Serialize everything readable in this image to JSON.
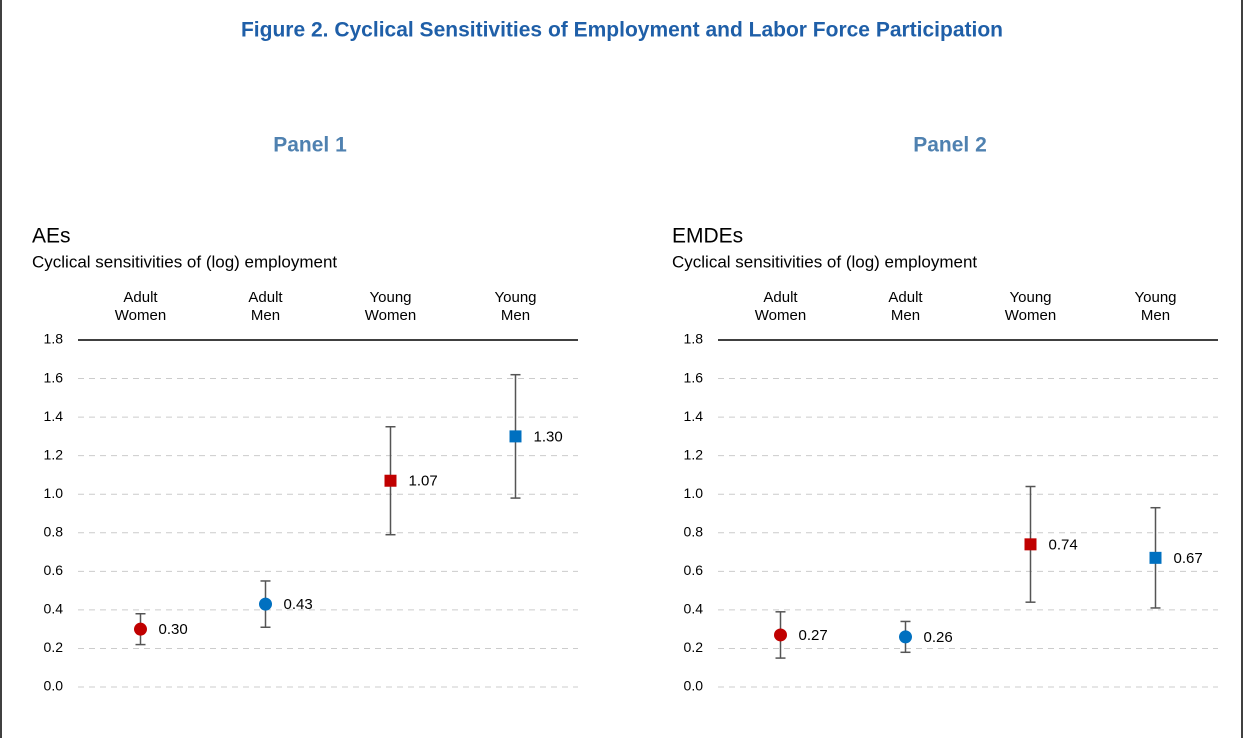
{
  "title": "Figure 2. Cyclical Sensitivities of Employment and Labor Force Participation",
  "chart_data": [
    {
      "type": "errorbar",
      "panel": "Panel 1",
      "title": "AEs",
      "subtitle": "Cyclical sensitivities of (log) employment",
      "categories": [
        [
          "Adult",
          "Women"
        ],
        [
          "Adult",
          "Men"
        ],
        [
          "Young",
          "Women"
        ],
        [
          "Young",
          "Men"
        ]
      ],
      "values": [
        0.3,
        0.43,
        1.07,
        1.3
      ],
      "value_labels": [
        "0.30",
        "0.43",
        "1.07",
        "1.30"
      ],
      "errors": [
        0.08,
        0.12,
        0.28,
        0.32
      ],
      "colors": [
        "#c00000",
        "#0070c0",
        "#c00000",
        "#0070c0"
      ],
      "markers": [
        "circle",
        "circle",
        "square",
        "square"
      ],
      "ylim": [
        0,
        1.8
      ],
      "yticks": [
        {
          "value": 0,
          "label": "0.0"
        },
        0.2,
        0.4,
        0.6,
        0.8,
        {
          "value": 1,
          "label": "1.0"
        },
        1.2,
        1.4,
        1.6,
        1.8
      ],
      "grid": true
    },
    {
      "type": "errorbar",
      "panel": "Panel 2",
      "title": "EMDEs",
      "subtitle": "Cyclical sensitivities of (log) employment",
      "categories": [
        [
          "Adult",
          "Women"
        ],
        [
          "Adult",
          "Men"
        ],
        [
          "Young",
          "Women"
        ],
        [
          "Young",
          "Men"
        ]
      ],
      "values": [
        0.27,
        0.26,
        0.74,
        0.67
      ],
      "value_labels": [
        "0.27",
        "0.26",
        "0.74",
        "0.67"
      ],
      "errors": [
        0.12,
        0.08,
        0.3,
        0.26
      ],
      "colors": [
        "#c00000",
        "#0070c0",
        "#c00000",
        "#0070c0"
      ],
      "markers": [
        "circle",
        "circle",
        "square",
        "square"
      ],
      "ylim": [
        0,
        1.8
      ],
      "yticks": [
        {
          "value": 0,
          "label": "0.0"
        },
        0.2,
        0.4,
        0.6,
        0.8,
        {
          "value": 1,
          "label": "1.0"
        },
        1.2,
        1.4,
        1.6,
        1.8
      ],
      "grid": true
    }
  ]
}
